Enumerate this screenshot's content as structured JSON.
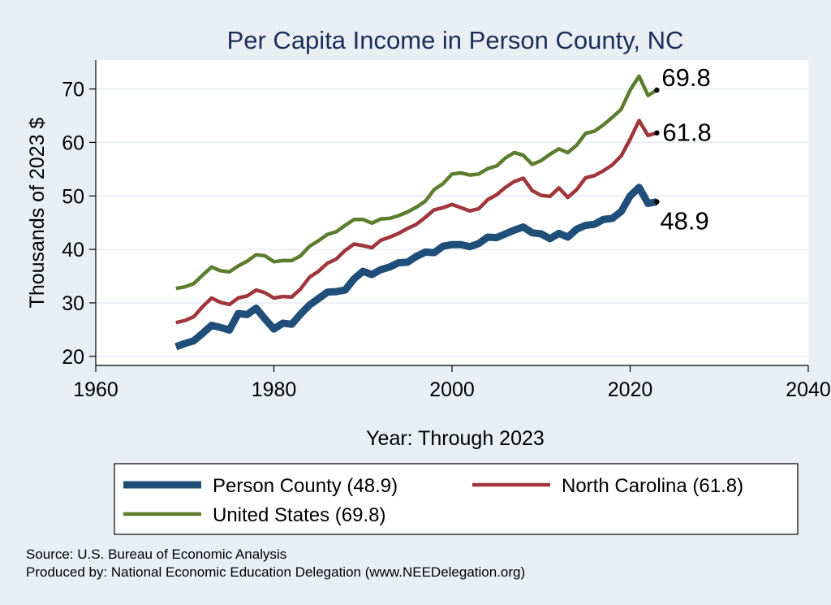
{
  "chart_data": {
    "type": "line",
    "title": "Per Capita Income in Person County, NC",
    "xlabel": "Year: Through 2023",
    "ylabel": "Thousands of 2023 $",
    "xlim": [
      1960,
      2040
    ],
    "ylim": [
      20,
      75
    ],
    "xticks": [
      "1960",
      "1980",
      "2000",
      "2020",
      "2040"
    ],
    "yticks": [
      "20",
      "30",
      "40",
      "50",
      "60",
      "70"
    ],
    "grid": true,
    "legend_position": "bottom",
    "colors": {
      "title": "#1a2e5a",
      "background": "#e9eef3",
      "plot_background": "#ffffff",
      "grid": "#e6ebf0"
    },
    "series": [
      {
        "name": "Person County (48.9)",
        "color": "#1f4e79",
        "end_label": "48.9",
        "points": [
          [
            1969,
            21.8
          ],
          [
            1970,
            22.4
          ],
          [
            1971,
            22.9
          ],
          [
            1972,
            24.3
          ],
          [
            1973,
            25.8
          ],
          [
            1974,
            25.4
          ],
          [
            1975,
            24.9
          ],
          [
            1976,
            28.0
          ],
          [
            1977,
            27.8
          ],
          [
            1978,
            29.0
          ],
          [
            1979,
            27.0
          ],
          [
            1980,
            25.1
          ],
          [
            1981,
            26.2
          ],
          [
            1982,
            26.0
          ],
          [
            1983,
            27.9
          ],
          [
            1984,
            29.6
          ],
          [
            1985,
            30.8
          ],
          [
            1986,
            32.0
          ],
          [
            1987,
            32.1
          ],
          [
            1988,
            32.4
          ],
          [
            1989,
            34.5
          ],
          [
            1990,
            35.9
          ],
          [
            1991,
            35.3
          ],
          [
            1992,
            36.2
          ],
          [
            1993,
            36.7
          ],
          [
            1994,
            37.5
          ],
          [
            1995,
            37.6
          ],
          [
            1996,
            38.7
          ],
          [
            1997,
            39.5
          ],
          [
            1998,
            39.4
          ],
          [
            1999,
            40.6
          ],
          [
            2000,
            40.9
          ],
          [
            2001,
            40.9
          ],
          [
            2002,
            40.5
          ],
          [
            2003,
            41.1
          ],
          [
            2004,
            42.3
          ],
          [
            2005,
            42.2
          ],
          [
            2006,
            42.9
          ],
          [
            2007,
            43.6
          ],
          [
            2008,
            44.2
          ],
          [
            2009,
            43.1
          ],
          [
            2010,
            42.9
          ],
          [
            2011,
            42.0
          ],
          [
            2012,
            43.0
          ],
          [
            2013,
            42.3
          ],
          [
            2014,
            43.8
          ],
          [
            2015,
            44.5
          ],
          [
            2016,
            44.7
          ],
          [
            2017,
            45.6
          ],
          [
            2018,
            45.8
          ],
          [
            2019,
            47.1
          ],
          [
            2020,
            50.0
          ],
          [
            2021,
            51.6
          ],
          [
            2022,
            48.6
          ],
          [
            2023,
            48.9
          ]
        ]
      },
      {
        "name": "North Carolina (61.8)",
        "color": "#a0363c",
        "end_label": "61.8",
        "points": [
          [
            1969,
            26.3
          ],
          [
            1970,
            26.7
          ],
          [
            1971,
            27.4
          ],
          [
            1972,
            29.3
          ],
          [
            1973,
            30.9
          ],
          [
            1974,
            30.1
          ],
          [
            1975,
            29.7
          ],
          [
            1976,
            30.9
          ],
          [
            1977,
            31.3
          ],
          [
            1978,
            32.4
          ],
          [
            1979,
            31.9
          ],
          [
            1980,
            30.9
          ],
          [
            1981,
            31.2
          ],
          [
            1982,
            31.1
          ],
          [
            1983,
            32.6
          ],
          [
            1984,
            34.8
          ],
          [
            1985,
            35.9
          ],
          [
            1986,
            37.4
          ],
          [
            1987,
            38.2
          ],
          [
            1988,
            39.8
          ],
          [
            1989,
            41.0
          ],
          [
            1990,
            40.7
          ],
          [
            1991,
            40.3
          ],
          [
            1992,
            41.7
          ],
          [
            1993,
            42.3
          ],
          [
            1994,
            43.0
          ],
          [
            1995,
            43.9
          ],
          [
            1996,
            44.7
          ],
          [
            1997,
            46.0
          ],
          [
            1998,
            47.4
          ],
          [
            1999,
            47.8
          ],
          [
            2000,
            48.4
          ],
          [
            2001,
            47.8
          ],
          [
            2002,
            47.2
          ],
          [
            2003,
            47.6
          ],
          [
            2004,
            49.3
          ],
          [
            2005,
            50.2
          ],
          [
            2006,
            51.6
          ],
          [
            2007,
            52.7
          ],
          [
            2008,
            53.3
          ],
          [
            2009,
            51.0
          ],
          [
            2010,
            50.1
          ],
          [
            2011,
            49.9
          ],
          [
            2012,
            51.5
          ],
          [
            2013,
            49.7
          ],
          [
            2014,
            51.2
          ],
          [
            2015,
            53.4
          ],
          [
            2016,
            53.8
          ],
          [
            2017,
            54.7
          ],
          [
            2018,
            55.8
          ],
          [
            2019,
            57.5
          ],
          [
            2020,
            60.6
          ],
          [
            2021,
            64.1
          ],
          [
            2022,
            61.3
          ],
          [
            2023,
            61.8
          ]
        ]
      },
      {
        "name": "United States (69.8)",
        "color": "#5b7d2e",
        "end_label": "69.8",
        "points": [
          [
            1969,
            32.7
          ],
          [
            1970,
            33.0
          ],
          [
            1971,
            33.6
          ],
          [
            1972,
            35.2
          ],
          [
            1973,
            36.7
          ],
          [
            1974,
            36.0
          ],
          [
            1975,
            35.8
          ],
          [
            1976,
            36.9
          ],
          [
            1977,
            37.8
          ],
          [
            1978,
            39.0
          ],
          [
            1979,
            38.8
          ],
          [
            1980,
            37.7
          ],
          [
            1981,
            37.9
          ],
          [
            1982,
            37.9
          ],
          [
            1983,
            38.8
          ],
          [
            1984,
            40.6
          ],
          [
            1985,
            41.6
          ],
          [
            1986,
            42.8
          ],
          [
            1987,
            43.3
          ],
          [
            1988,
            44.5
          ],
          [
            1989,
            45.6
          ],
          [
            1990,
            45.6
          ],
          [
            1991,
            44.9
          ],
          [
            1992,
            45.7
          ],
          [
            1993,
            45.8
          ],
          [
            1994,
            46.3
          ],
          [
            1995,
            47.0
          ],
          [
            1996,
            47.9
          ],
          [
            1997,
            49.0
          ],
          [
            1998,
            51.2
          ],
          [
            1999,
            52.3
          ],
          [
            2000,
            54.1
          ],
          [
            2001,
            54.3
          ],
          [
            2002,
            53.9
          ],
          [
            2003,
            54.1
          ],
          [
            2004,
            55.1
          ],
          [
            2005,
            55.6
          ],
          [
            2006,
            57.1
          ],
          [
            2007,
            58.1
          ],
          [
            2008,
            57.6
          ],
          [
            2009,
            55.9
          ],
          [
            2010,
            56.6
          ],
          [
            2011,
            57.8
          ],
          [
            2012,
            58.8
          ],
          [
            2013,
            58.1
          ],
          [
            2014,
            59.5
          ],
          [
            2015,
            61.7
          ],
          [
            2016,
            62.1
          ],
          [
            2017,
            63.3
          ],
          [
            2018,
            64.7
          ],
          [
            2019,
            66.2
          ],
          [
            2020,
            69.8
          ],
          [
            2021,
            72.4
          ],
          [
            2022,
            68.8
          ],
          [
            2023,
            69.8
          ]
        ]
      }
    ]
  },
  "source_lines": [
    "Source: U.S. Bureau of Economic Analysis",
    "Produced by: National Economic Education Delegation (www.NEEDelegation.org)"
  ]
}
